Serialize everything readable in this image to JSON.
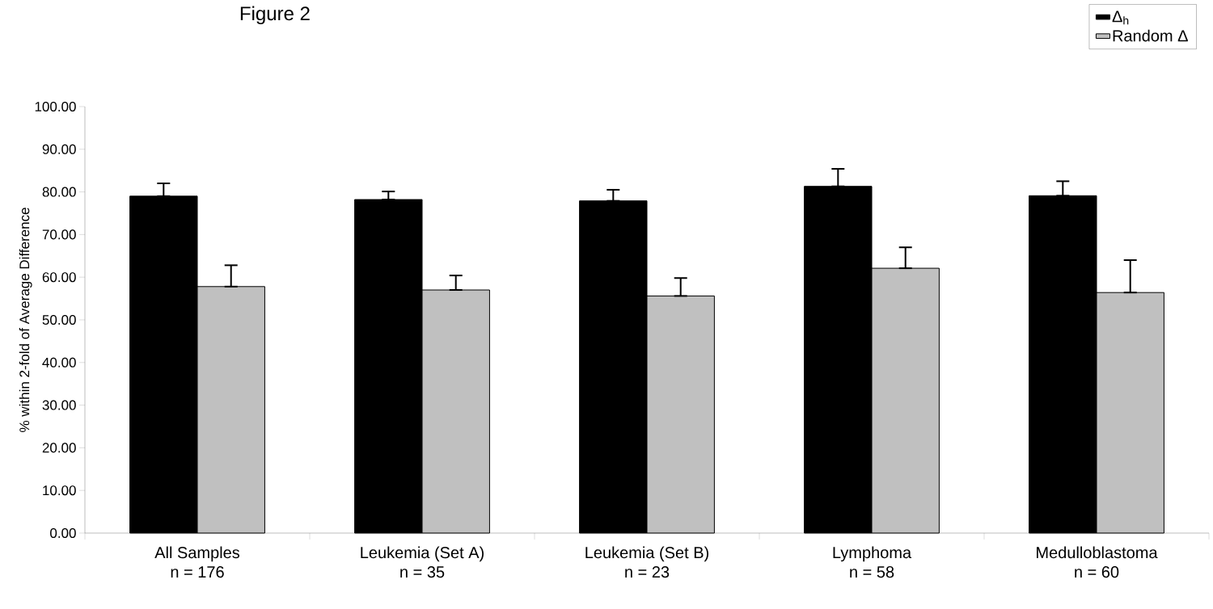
{
  "chart_data": {
    "type": "bar",
    "title": "Figure 2",
    "ylabel": "% within 2-fold of Average Difference",
    "categories": [
      "All Samples\nn = 176",
      "Leukemia (Set A)\nn = 35",
      "Leukemia (Set B)\nn = 23",
      "Lymphoma\nn = 58",
      "Medulloblastoma\nn = 60"
    ],
    "series": [
      {
        "name": "Δ$_{h}$",
        "color": "#000000",
        "values": [
          79.0,
          78.2,
          77.9,
          81.3,
          79.1
        ],
        "errors": [
          [
            79.0,
            82.0
          ],
          [
            78.2,
            80.1
          ],
          [
            77.9,
            80.5
          ],
          [
            81.3,
            85.4
          ],
          [
            79.1,
            82.5
          ]
        ]
      },
      {
        "name": "Random Δ",
        "color": "#c0c0c0",
        "values": [
          57.8,
          57.0,
          55.6,
          62.1,
          56.4
        ],
        "errors": [
          [
            57.8,
            62.8
          ],
          [
            57.0,
            60.4
          ],
          [
            55.6,
            59.8
          ],
          [
            62.1,
            67.0
          ],
          [
            56.4,
            64.0
          ]
        ]
      }
    ],
    "ylim": [
      0,
      100
    ],
    "yticks": [
      {
        "value": 0,
        "label": "0.00"
      },
      {
        "value": 10,
        "label": "10.00"
      },
      {
        "value": 20,
        "label": "20.00"
      },
      {
        "value": 30,
        "label": "30.00"
      },
      {
        "value": 40,
        "label": "40.00"
      },
      {
        "value": 50,
        "label": "50.00"
      },
      {
        "value": 60,
        "label": "60.00"
      },
      {
        "value": 70,
        "label": "70.00"
      },
      {
        "value": 80,
        "label": "80.00"
      },
      {
        "value": 90,
        "label": "90.00"
      },
      {
        "value": 100,
        "label": "100.00"
      }
    ],
    "grid": false,
    "legend": "top right"
  }
}
